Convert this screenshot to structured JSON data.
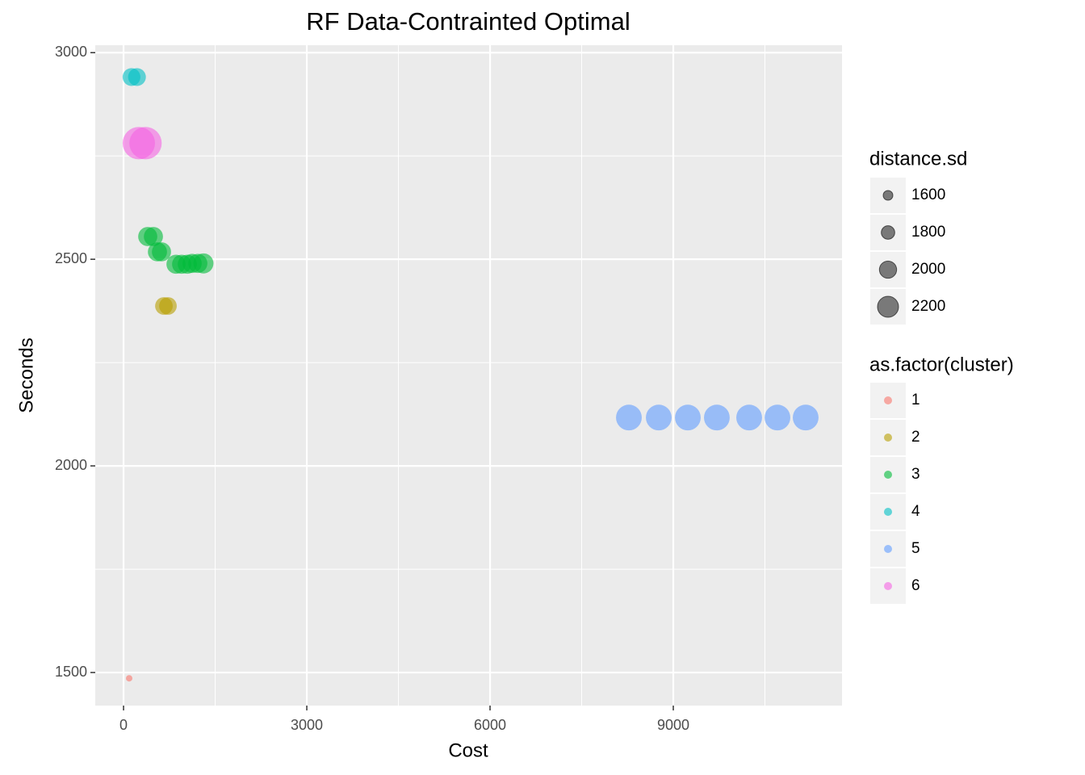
{
  "chart_data": {
    "type": "scatter",
    "title": "RF Data-Contrainted Optimal",
    "x_label": "Cost",
    "y_label": "Seconds",
    "xlim": [
      -463,
      11762
    ],
    "ylim": [
      1420,
      3018
    ],
    "xticks": [
      0,
      3000,
      6000,
      9000
    ],
    "yticks": [
      1500,
      2000,
      2500,
      3000
    ],
    "xminor": [
      1500,
      4500,
      7500,
      10500
    ],
    "yminor": [
      1750,
      2250,
      2750
    ],
    "grid": true,
    "size_legend": {
      "title": "distance.sd",
      "values": [
        1600,
        1800,
        2000,
        2200
      ]
    },
    "color_legend_title": "as.factor(cluster)",
    "series": [
      {
        "name": "1",
        "color": "#F8766D",
        "x": [
          92
        ],
        "y": [
          1486
        ],
        "size": [
          1430
        ]
      },
      {
        "name": "2",
        "color": "#B79F00",
        "x": [
          661,
          727
        ],
        "y": [
          2387,
          2387
        ],
        "size": [
          2020,
          2020
        ]
      },
      {
        "name": "3",
        "color": "#00BA38",
        "x": [
          396,
          489,
          555,
          621,
          859,
          951,
          1044,
          1123,
          1216,
          1308
        ],
        "y": [
          2555,
          2555,
          2518,
          2518,
          2488,
          2488,
          2488,
          2490,
          2490,
          2490
        ],
        "size": [
          2100,
          2100,
          2100,
          2100,
          2100,
          2100,
          2100,
          2100,
          2100,
          2150
        ]
      },
      {
        "name": "4",
        "color": "#00BFC4",
        "x": [
          130,
          220
        ],
        "y": [
          2941,
          2941
        ],
        "size": [
          2030,
          2030
        ]
      },
      {
        "name": "5",
        "color": "#619CFF",
        "x": [
          8273,
          8762,
          9238,
          9713,
          10242,
          10705,
          11167
        ],
        "y": [
          2117,
          2117,
          2117,
          2117,
          2117,
          2117,
          2117
        ],
        "size": [
          2450,
          2450,
          2450,
          2450,
          2450,
          2450,
          2450
        ]
      },
      {
        "name": "6",
        "color": "#F564E3",
        "x": [
          250,
          360
        ],
        "y": [
          2781,
          2781
        ],
        "size": [
          2800,
          2800
        ]
      }
    ]
  }
}
